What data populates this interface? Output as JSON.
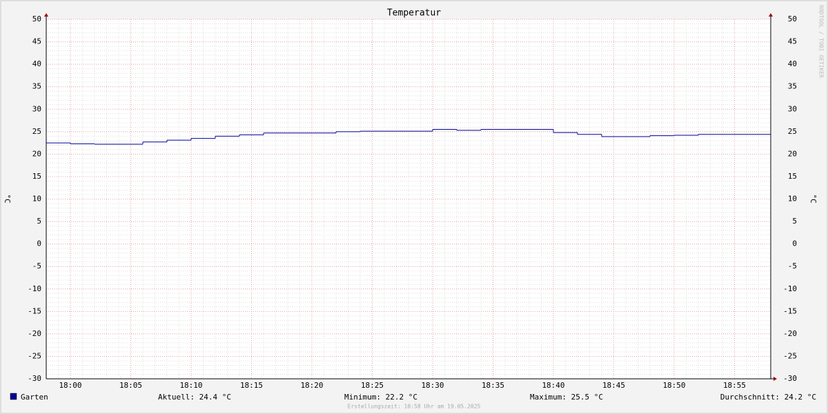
{
  "chart_data": {
    "type": "line",
    "step": true,
    "title": "Temperatur",
    "ylabel": "°C",
    "x": [
      "17:58",
      "18:00",
      "18:02",
      "18:06",
      "18:08",
      "18:10",
      "18:12",
      "18:14",
      "18:16",
      "18:22",
      "18:24",
      "18:30",
      "18:32",
      "18:34",
      "18:40",
      "18:42",
      "18:44",
      "18:48",
      "18:50",
      "18:52"
    ],
    "series": [
      {
        "name": "Garten",
        "color": "#000099",
        "values": [
          22.5,
          22.3,
          22.2,
          22.7,
          23.1,
          23.5,
          24.0,
          24.3,
          24.7,
          25.0,
          25.1,
          25.5,
          25.3,
          25.5,
          24.8,
          24.4,
          23.9,
          24.1,
          24.2,
          24.4
        ]
      }
    ],
    "xlim": [
      "17:58",
      "18:58"
    ],
    "xticks": [
      "18:00",
      "18:05",
      "18:10",
      "18:15",
      "18:20",
      "18:25",
      "18:30",
      "18:35",
      "18:40",
      "18:45",
      "18:50",
      "18:55"
    ],
    "ylim": [
      -30,
      50
    ],
    "yticks": [
      -30,
      -25,
      -20,
      -15,
      -10,
      -5,
      0,
      5,
      10,
      15,
      20,
      25,
      30,
      35,
      40,
      45,
      50
    ],
    "grid": true,
    "stats": [
      "Aktuell: 24.4 °C",
      "Minimum: 22.2 °C",
      "Maximum: 25.5 °C",
      "Durchschnitt: 24.2 °C"
    ],
    "footer": "Erstellungszeit: 18:58 Uhr am 19.05.2025",
    "watermark": "RRDTOOL / TOBI OETIKER"
  }
}
